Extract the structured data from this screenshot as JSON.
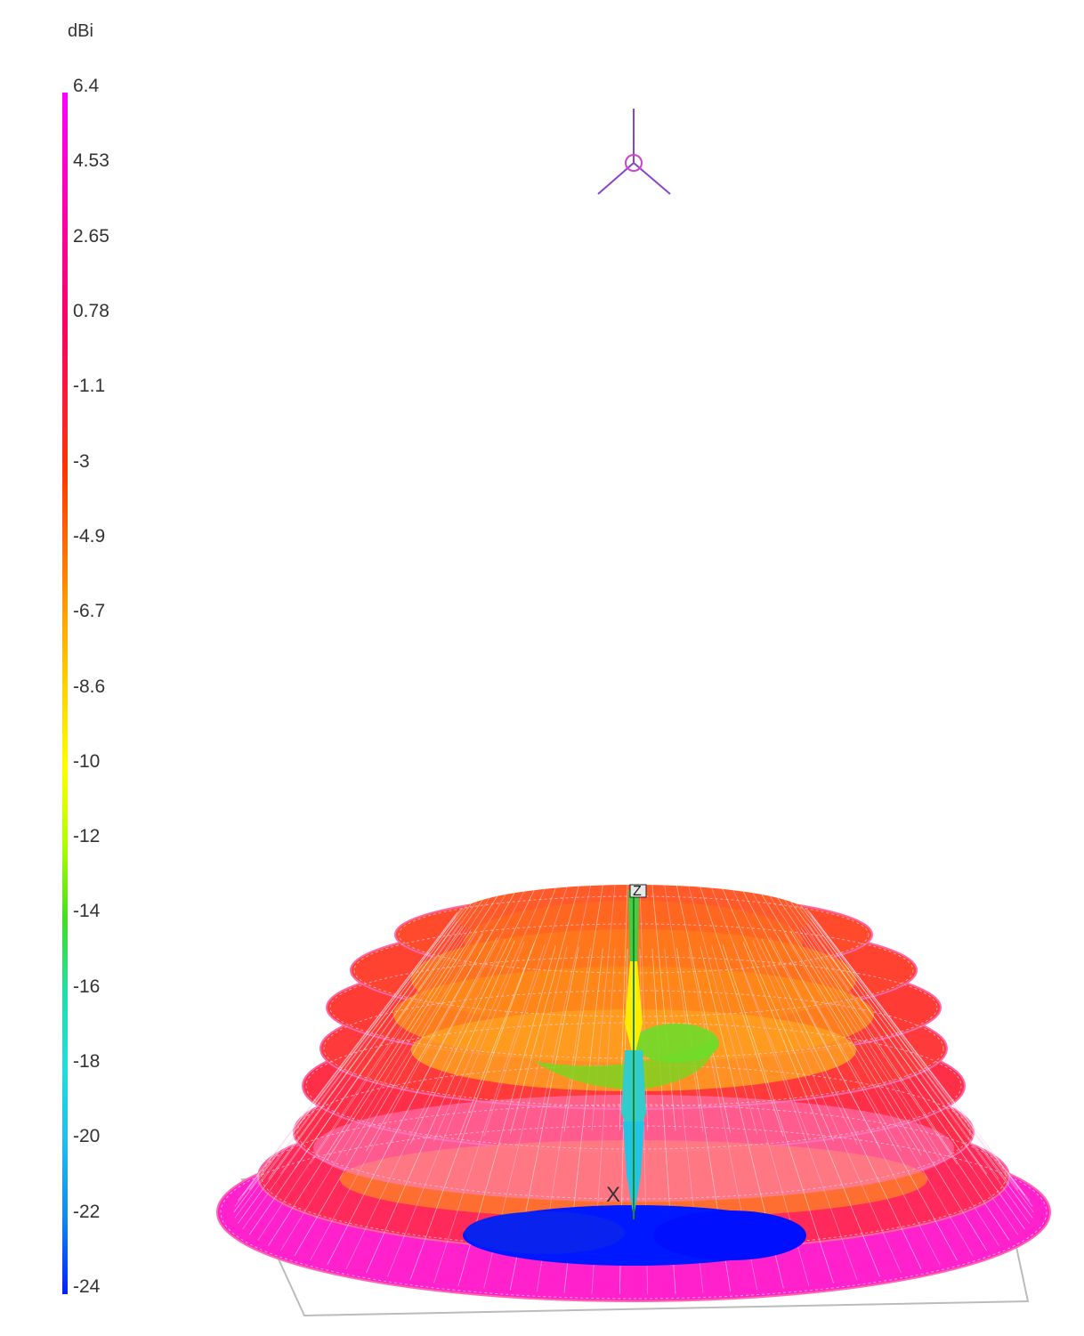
{
  "colorbar": {
    "unit": "dBi",
    "ticks": [
      "6.4",
      "4.53",
      "2.65",
      "0.78",
      "-1.1",
      "-3",
      "-4.9",
      "-6.7",
      "-8.6",
      "-10",
      "-12",
      "-14",
      "-16",
      "-18",
      "-20",
      "-22",
      "-24"
    ],
    "segment_colors": [
      "#ff00ff",
      "#ff00cc",
      "#ff0099",
      "#ff0066",
      "#ff1a3a",
      "#ff3300",
      "#ff6a00",
      "#ffa500",
      "#ffd500",
      "#ffff00",
      "#b0ff00",
      "#44dd22",
      "#22ddaa",
      "#22dddd",
      "#22bbee",
      "#1188ee",
      "#0022ff"
    ]
  },
  "axes": {
    "z_label": "Z",
    "x_label": "X"
  }
}
